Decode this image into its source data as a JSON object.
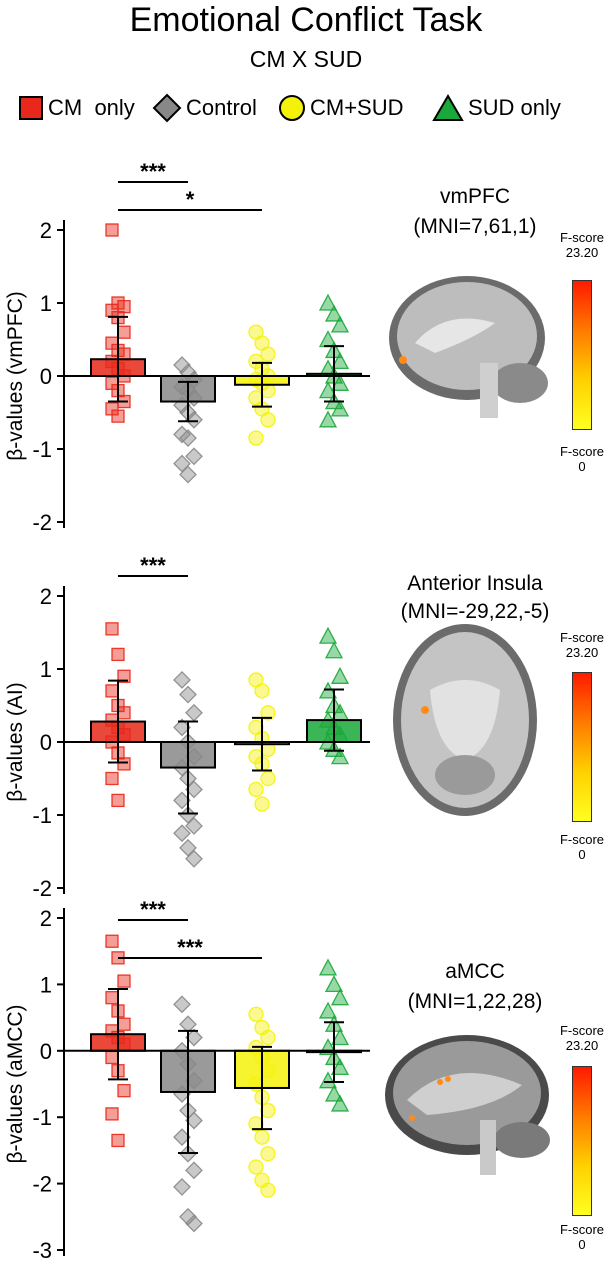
{
  "title": "Emotional Conflict Task",
  "subtitle": "CM X SUD",
  "legend": [
    {
      "label": "CM  only",
      "shape": "square",
      "color": "#e8281a"
    },
    {
      "label": "Control",
      "shape": "diamond",
      "color": "#888888"
    },
    {
      "label": "CM+SUD",
      "shape": "circle",
      "color": "#f5f20a"
    },
    {
      "label": "SUD only",
      "shape": "triangle",
      "color": "#1aa83a"
    }
  ],
  "groups": [
    "CM only",
    "Control",
    "CM+SUD",
    "SUD only"
  ],
  "colors": {
    "cm": "#e8281a",
    "control": "#888888",
    "cmsud": "#f5f20a",
    "sud": "#1aa83a"
  },
  "chart_data": [
    {
      "type": "bar",
      "ylabel": "β-values (vmPFC)",
      "ylim": [
        -2,
        2.3
      ],
      "yticks": [
        -2,
        -1,
        0,
        1,
        2
      ],
      "series": [
        {
          "name": "CM only",
          "mean": 0.23,
          "sd": 0.58,
          "points": [
            2.0,
            1.0,
            0.95,
            0.9,
            0.8,
            0.6,
            0.45,
            0.35,
            0.3,
            0.2,
            0.1,
            0.0,
            -0.1,
            -0.2,
            -0.35,
            -0.45,
            -0.55
          ]
        },
        {
          "name": "Control",
          "mean": -0.35,
          "sd": 0.27,
          "points": [
            0.15,
            0.05,
            -0.05,
            -0.15,
            -0.2,
            -0.3,
            -0.4,
            -0.5,
            -0.6,
            -0.8,
            -0.85,
            -1.1,
            -1.2,
            -1.35
          ]
        },
        {
          "name": "CM+SUD",
          "mean": -0.12,
          "sd": 0.3,
          "points": [
            0.6,
            0.45,
            0.3,
            0.2,
            0.1,
            0.0,
            -0.05,
            -0.1,
            -0.2,
            -0.3,
            -0.45,
            -0.6,
            -0.85
          ]
        },
        {
          "name": "SUD only",
          "mean": 0.03,
          "sd": 0.38,
          "points": [
            1.0,
            0.85,
            0.7,
            0.5,
            0.35,
            0.2,
            0.1,
            0.0,
            -0.1,
            -0.2,
            -0.35,
            -0.45,
            -0.6
          ]
        }
      ],
      "significance": [
        {
          "from": 0,
          "to": 1,
          "label": "***"
        },
        {
          "from": 0,
          "to": 2,
          "label": "*"
        }
      ],
      "brain": {
        "region": "vmPFC",
        "mni": "(MNI=7,61,1)",
        "fmax_label": "F-score",
        "fmax": "23.20",
        "fmin_label": "F-score",
        "fmin": "0"
      }
    },
    {
      "type": "bar",
      "ylabel": "β-values (AI)",
      "ylim": [
        -2,
        2.3
      ],
      "yticks": [
        -2,
        -1,
        0,
        1,
        2
      ],
      "series": [
        {
          "name": "CM only",
          "mean": 0.28,
          "sd": 0.56,
          "points": [
            1.55,
            1.2,
            0.9,
            0.7,
            0.5,
            0.4,
            0.3,
            0.2,
            0.1,
            0.0,
            -0.15,
            -0.3,
            -0.5,
            -0.8
          ]
        },
        {
          "name": "Control",
          "mean": -0.35,
          "sd": 0.63,
          "points": [
            0.85,
            0.65,
            0.4,
            0.2,
            0.0,
            -0.2,
            -0.35,
            -0.5,
            -0.65,
            -0.8,
            -1.0,
            -1.15,
            -1.25,
            -1.45,
            -1.6
          ]
        },
        {
          "name": "CM+SUD",
          "mean": -0.03,
          "sd": 0.36,
          "points": [
            0.85,
            0.7,
            0.4,
            0.2,
            0.05,
            -0.1,
            -0.2,
            -0.3,
            -0.5,
            -0.65,
            -0.85
          ]
        },
        {
          "name": "SUD only",
          "mean": 0.3,
          "sd": 0.42,
          "points": [
            1.45,
            1.25,
            0.9,
            0.7,
            0.5,
            0.4,
            0.3,
            0.2,
            0.1,
            0.0,
            -0.1,
            -0.2
          ]
        }
      ],
      "significance": [
        {
          "from": 0,
          "to": 1,
          "label": "***"
        }
      ],
      "brain": {
        "region": "Anterior Insula",
        "mni": "(MNI=-29,22,-5)",
        "fmax_label": "F-score",
        "fmax": "23.20",
        "fmin_label": "F-score",
        "fmin": "0"
      }
    },
    {
      "type": "bar",
      "ylabel": "β-values (aMCC)",
      "ylim": [
        -3,
        2.3
      ],
      "yticks": [
        -3,
        -2,
        -1,
        0,
        1,
        2
      ],
      "series": [
        {
          "name": "CM only",
          "mean": 0.25,
          "sd": 0.68,
          "points": [
            1.65,
            1.4,
            1.05,
            0.8,
            0.6,
            0.4,
            0.3,
            0.2,
            0.1,
            -0.1,
            -0.3,
            -0.6,
            -0.95,
            -1.35
          ]
        },
        {
          "name": "Control",
          "mean": -0.62,
          "sd": 0.92,
          "points": [
            0.7,
            0.4,
            0.2,
            0.0,
            -0.2,
            -0.45,
            -0.65,
            -0.9,
            -1.05,
            -1.3,
            -1.55,
            -1.8,
            -2.05,
            -2.5,
            -2.6
          ]
        },
        {
          "name": "CM+SUD",
          "mean": -0.56,
          "sd": 0.62,
          "points": [
            0.55,
            0.35,
            0.2,
            0.05,
            -0.1,
            -0.3,
            -0.5,
            -0.7,
            -0.9,
            -1.1,
            -1.3,
            -1.55,
            -1.75,
            -1.95,
            -2.1
          ]
        },
        {
          "name": "SUD only",
          "mean": -0.02,
          "sd": 0.45,
          "points": [
            1.25,
            1.0,
            0.8,
            0.6,
            0.4,
            0.2,
            0.05,
            -0.1,
            -0.25,
            -0.45,
            -0.65,
            -0.8
          ]
        }
      ],
      "significance": [
        {
          "from": 0,
          "to": 1,
          "label": "***"
        },
        {
          "from": 0,
          "to": 2,
          "label": "***"
        }
      ],
      "brain": {
        "region": "aMCC",
        "mni": "(MNI=1,22,28)",
        "fmax_label": "F-score",
        "fmax": "23.20",
        "fmin_label": "F-score",
        "fmin": "0"
      }
    }
  ]
}
